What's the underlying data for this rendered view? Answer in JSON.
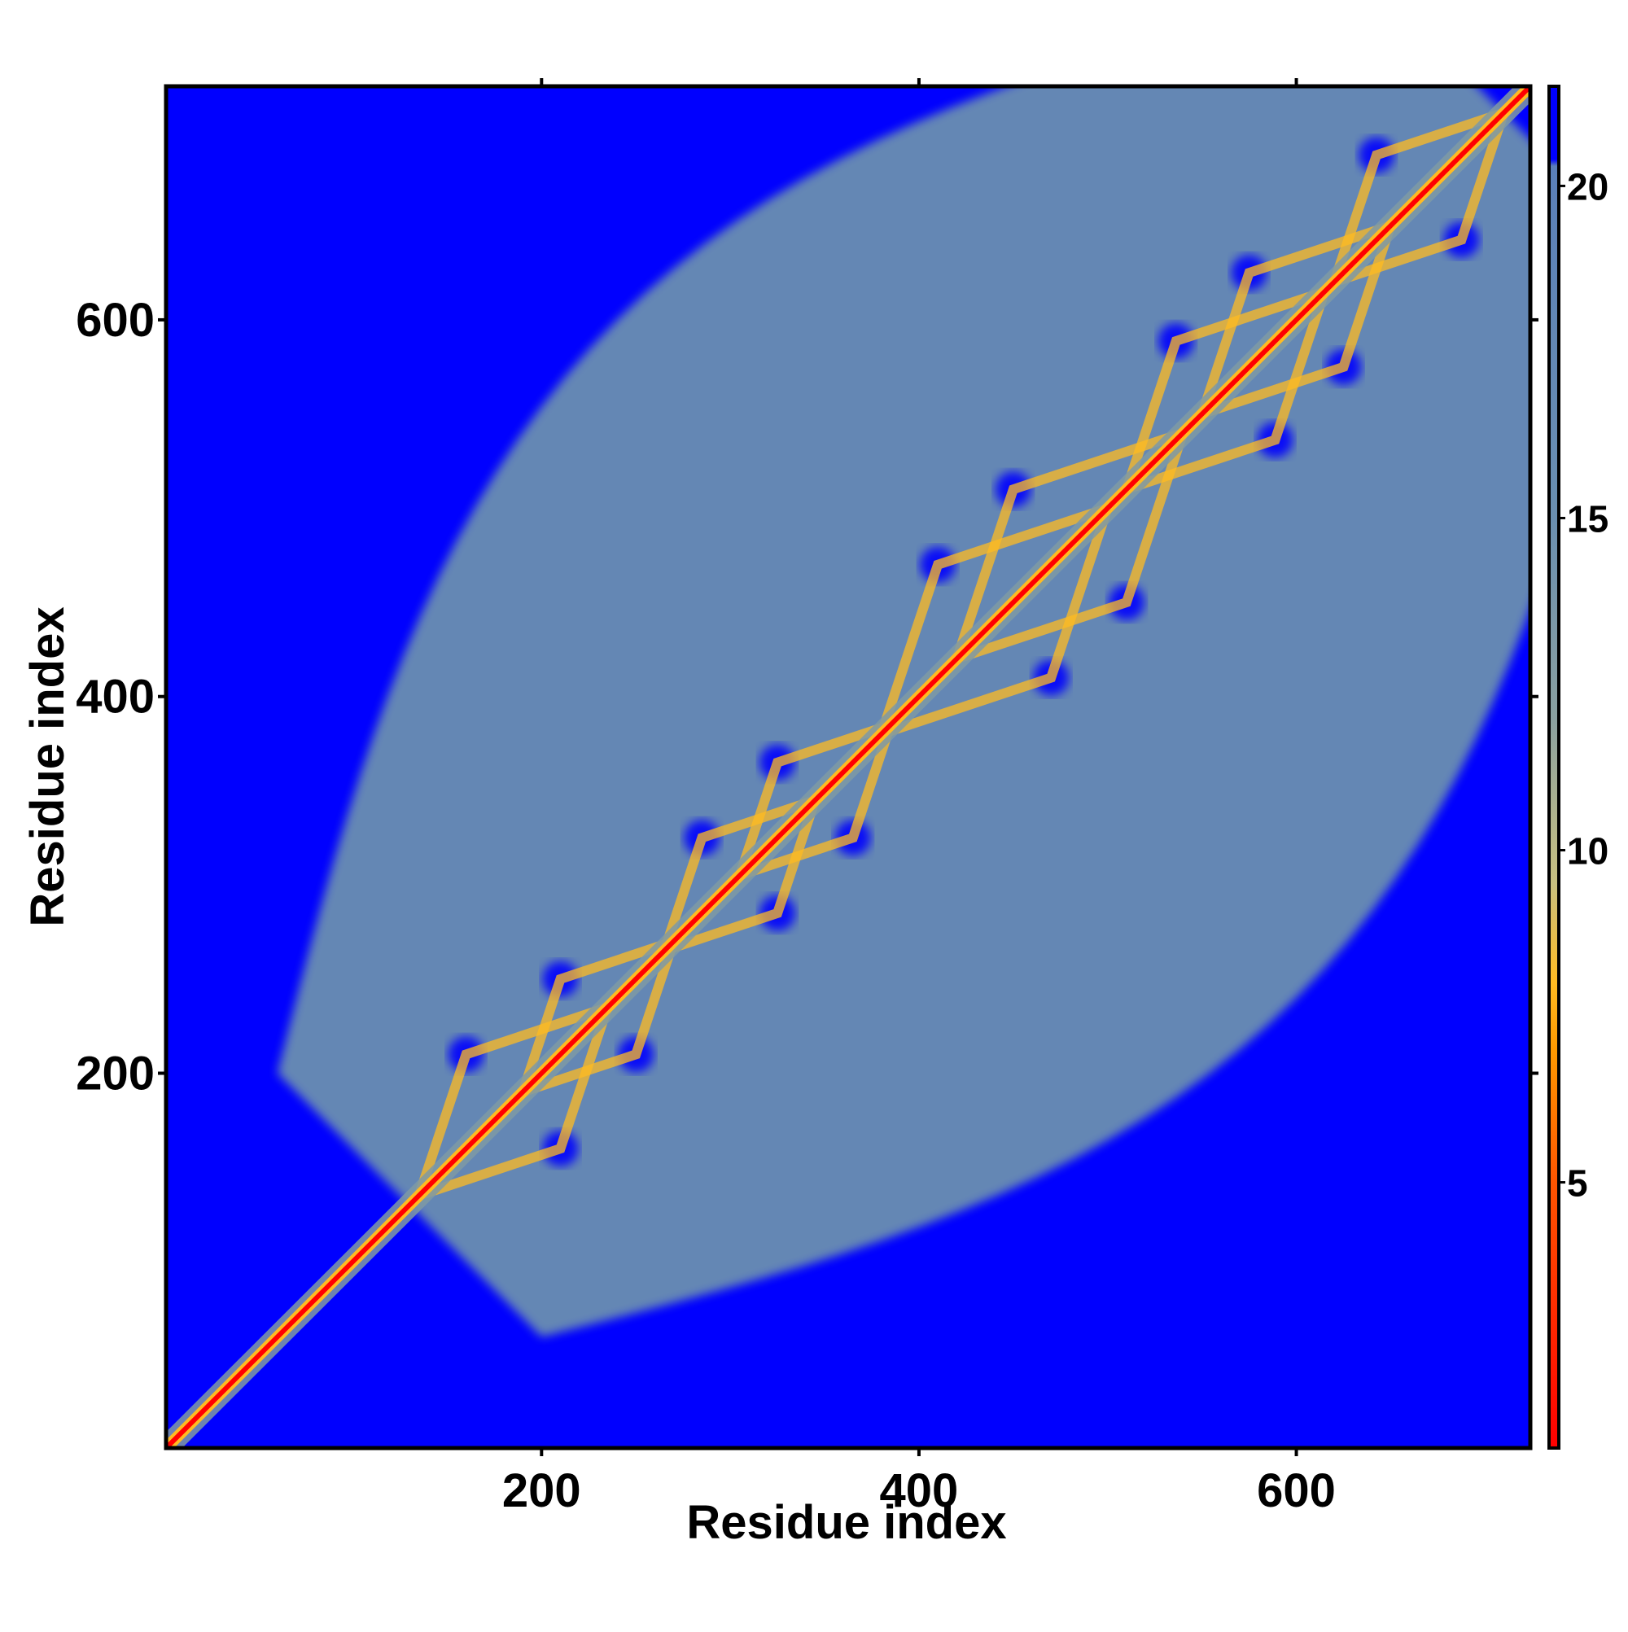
{
  "chart_data": {
    "type": "heatmap",
    "title": "",
    "xlabel": "Residue index",
    "ylabel": "Residue index",
    "xlim": [
      1,
      724
    ],
    "ylim": [
      1,
      724
    ],
    "x_ticks": [
      200,
      400,
      600
    ],
    "y_ticks": [
      200,
      400,
      600
    ],
    "colorbar": {
      "range": [
        1,
        21.5
      ],
      "ticks": [
        5,
        10,
        15,
        20
      ],
      "scale": [
        {
          "value": 1,
          "color": "#ff0000"
        },
        {
          "value": 5,
          "color": "#ff5500"
        },
        {
          "value": 7,
          "color": "#ff9900"
        },
        {
          "value": 8,
          "color": "#ffbb22"
        },
        {
          "value": 9.5,
          "color": "#c8c080"
        },
        {
          "value": 12,
          "color": "#8aa0a0"
        },
        {
          "value": 15,
          "color": "#6a8fb0"
        },
        {
          "value": 20.3,
          "color": "#5a7fb8"
        },
        {
          "value": 20.4,
          "color": "#0000ff"
        },
        {
          "value": 21.5,
          "color": "#0000ff"
        }
      ]
    },
    "background_color": "#0000ff",
    "diagonal_value": 1,
    "near_diagonal_band_value": 13,
    "contact_region_value": 15,
    "motif_outline_value": 8,
    "contact_region_bounds": {
      "start": 130,
      "end": 710
    },
    "domain_motifs": [
      {
        "start": 135,
        "end": 235
      },
      {
        "start": 190,
        "end": 270
      },
      {
        "start": 265,
        "end": 345
      },
      {
        "start": 305,
        "end": 385
      },
      {
        "start": 380,
        "end": 500
      },
      {
        "start": 420,
        "end": 540
      },
      {
        "start": 510,
        "end": 615
      },
      {
        "start": 550,
        "end": 650
      },
      {
        "start": 620,
        "end": 710
      }
    ]
  }
}
